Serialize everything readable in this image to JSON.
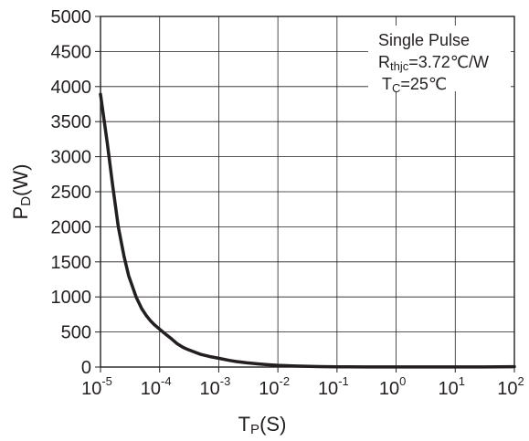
{
  "chart_data": {
    "type": "line",
    "x_scale": "log",
    "xlim": [
      1e-05,
      100
    ],
    "ylim": [
      0,
      5000
    ],
    "grid": true,
    "xlabel": "TP(S)",
    "ylabel": "PD(W)",
    "xlabel_main": "T",
    "xlabel_sub": "P",
    "xlabel_unit": "(S)",
    "ylabel_main": "P",
    "ylabel_sub": "D",
    "ylabel_unit": "(W)",
    "x_ticks": [
      {
        "value": 1e-05,
        "base": "10",
        "exp": "-5"
      },
      {
        "value": 0.0001,
        "base": "10",
        "exp": "-4"
      },
      {
        "value": 0.001,
        "base": "10",
        "exp": "-3"
      },
      {
        "value": 0.01,
        "base": "10",
        "exp": "-2"
      },
      {
        "value": 0.1,
        "base": "10",
        "exp": "-1"
      },
      {
        "value": 1,
        "base": "10",
        "exp": "0"
      },
      {
        "value": 10,
        "base": "10",
        "exp": "1"
      },
      {
        "value": 100,
        "base": "10",
        "exp": "2"
      }
    ],
    "y_ticks": [
      "0",
      "500",
      "1000",
      "1500",
      "2000",
      "2500",
      "3000",
      "3500",
      "4000",
      "4500",
      "5000"
    ],
    "y_tick_values": [
      0,
      500,
      1000,
      1500,
      2000,
      2500,
      3000,
      3500,
      4000,
      4500,
      5000
    ],
    "annotation": {
      "line1": "Single Pulse",
      "line2_main": "R",
      "line2_sub": "thjc",
      "line2_rest": "=3.72℃/W",
      "line3_main": "T",
      "line3_sub": "C",
      "line3_rest": "=25℃"
    },
    "series": [
      {
        "color": "#231f20",
        "x": [
          1e-05,
          1.3e-05,
          1.6e-05,
          2e-05,
          2.5e-05,
          3e-05,
          4e-05,
          5e-05,
          6e-05,
          7e-05,
          8e-05,
          0.0001,
          0.00013,
          0.00016,
          0.0002,
          0.00025,
          0.0003,
          0.0004,
          0.0005,
          0.0007,
          0.001,
          0.0015,
          0.002,
          0.003,
          0.005,
          0.007,
          0.01,
          0.02,
          0.05,
          0.1,
          0.3,
          1,
          3,
          10,
          30,
          100
        ],
        "y": [
          3890,
          3200,
          2600,
          2000,
          1580,
          1300,
          1000,
          830,
          730,
          660,
          610,
          540,
          460,
          400,
          330,
          280,
          250,
          210,
          180,
          150,
          125,
          95,
          78,
          60,
          42,
          32,
          24,
          14,
          7,
          4,
          2,
          1,
          1,
          1,
          1,
          5
        ]
      }
    ]
  },
  "colors": {
    "ink": "#231f20",
    "background": "#ffffff"
  }
}
